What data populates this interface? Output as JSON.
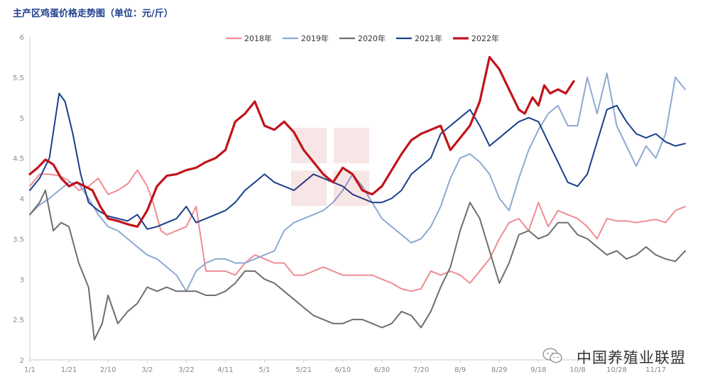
{
  "title": "主产区鸡蛋价格走势图（单位：元/斤）",
  "watermark": "中国养殖业联盟",
  "colors": {
    "2018": "#f08c94",
    "2019": "#8ea9d4",
    "2020": "#6e6e6e",
    "2021": "#1a3f8a",
    "2022": "#c0141c",
    "axis": "#cccccc",
    "tick": "#888888"
  },
  "chart_data": {
    "type": "line",
    "title": "主产区鸡蛋价格走势图（单位：元/斤）",
    "ylim": [
      2,
      6
    ],
    "yticks": [
      "2",
      "2.5",
      "3",
      "3.5",
      "4",
      "4.5",
      "5",
      "5.5",
      "6"
    ],
    "xlabels": [
      "1/1",
      "1/21",
      "2/10",
      "3/2",
      "3/22",
      "4/11",
      "5/1",
      "5/21",
      "6/10",
      "6/30",
      "7/20",
      "8/9",
      "8/29",
      "9/18",
      "10/8",
      "10/28",
      "11/17"
    ],
    "xlim": [
      0,
      335
    ],
    "legend_position": "top-center",
    "grid": false,
    "series": [
      {
        "name": "2018年",
        "x": [
          0,
          5,
          10,
          15,
          20,
          25,
          30,
          35,
          40,
          45,
          50,
          55,
          60,
          63,
          67,
          70,
          75,
          80,
          85,
          90,
          95,
          100,
          105,
          110,
          115,
          120,
          125,
          130,
          135,
          140,
          145,
          150,
          155,
          160,
          165,
          170,
          175,
          180,
          185,
          190,
          195,
          200,
          205,
          210,
          215,
          220,
          225,
          230,
          235,
          240,
          245,
          250,
          255,
          260,
          265,
          270,
          275,
          280,
          285,
          290,
          295,
          300,
          305,
          310,
          315,
          320,
          325,
          330,
          335
        ],
        "y": [
          4.15,
          4.3,
          4.3,
          4.28,
          4.22,
          4.1,
          4.15,
          4.25,
          4.05,
          4.1,
          4.18,
          4.35,
          4.15,
          3.95,
          3.6,
          3.55,
          3.6,
          3.65,
          3.9,
          3.1,
          3.1,
          3.1,
          3.05,
          3.2,
          3.3,
          3.25,
          3.2,
          3.2,
          3.05,
          3.05,
          3.1,
          3.15,
          3.1,
          3.05,
          3.05,
          3.05,
          3.05,
          3.0,
          2.95,
          2.88,
          2.85,
          2.88,
          3.1,
          3.05,
          3.1,
          3.05,
          2.95,
          3.1,
          3.25,
          3.5,
          3.7,
          3.75,
          3.6,
          3.95,
          3.65,
          3.85,
          3.8,
          3.75,
          3.65,
          3.5,
          3.75,
          3.72,
          3.72,
          3.7,
          3.72,
          3.74,
          3.7,
          3.85,
          3.9
        ]
      },
      {
        "name": "2019年",
        "x": [
          0,
          5,
          10,
          15,
          20,
          25,
          30,
          35,
          40,
          45,
          50,
          55,
          60,
          65,
          70,
          75,
          80,
          85,
          90,
          95,
          100,
          105,
          110,
          115,
          120,
          125,
          130,
          135,
          140,
          145,
          150,
          155,
          160,
          165,
          170,
          175,
          180,
          185,
          190,
          195,
          200,
          205,
          210,
          215,
          220,
          225,
          230,
          235,
          240,
          245,
          250,
          255,
          260,
          265,
          270,
          275,
          280,
          285,
          290,
          295,
          300,
          305,
          310,
          315,
          320,
          325,
          330,
          335
        ],
        "y": [
          3.8,
          3.92,
          4.0,
          4.1,
          4.2,
          4.18,
          4.0,
          3.8,
          3.65,
          3.6,
          3.5,
          3.4,
          3.3,
          3.25,
          3.15,
          3.05,
          2.85,
          3.1,
          3.2,
          3.25,
          3.25,
          3.2,
          3.2,
          3.25,
          3.3,
          3.35,
          3.6,
          3.7,
          3.75,
          3.8,
          3.85,
          3.95,
          4.1,
          4.3,
          4.15,
          3.95,
          3.75,
          3.65,
          3.55,
          3.45,
          3.5,
          3.65,
          3.9,
          4.25,
          4.5,
          4.55,
          4.45,
          4.3,
          4.0,
          3.85,
          4.25,
          4.6,
          4.85,
          5.05,
          5.15,
          4.9,
          4.9,
          5.5,
          5.05,
          5.55,
          4.9,
          4.65,
          4.4,
          4.65,
          4.5,
          4.8,
          5.5,
          5.35
        ]
      },
      {
        "name": "2020年",
        "x": [
          0,
          5,
          8,
          12,
          16,
          20,
          25,
          30,
          33,
          37,
          40,
          45,
          50,
          55,
          60,
          65,
          70,
          75,
          80,
          85,
          90,
          95,
          100,
          105,
          110,
          115,
          120,
          125,
          130,
          135,
          140,
          145,
          150,
          155,
          160,
          165,
          170,
          175,
          180,
          185,
          190,
          195,
          200,
          205,
          210,
          215,
          220,
          225,
          230,
          235,
          240,
          245,
          250,
          255,
          260,
          265,
          270,
          275,
          280,
          285,
          290,
          295,
          300,
          305,
          310,
          315,
          320,
          325,
          330,
          335
        ],
        "y": [
          3.8,
          3.95,
          4.1,
          3.6,
          3.7,
          3.65,
          3.2,
          2.9,
          2.25,
          2.45,
          2.8,
          2.45,
          2.6,
          2.7,
          2.9,
          2.85,
          2.9,
          2.85,
          2.85,
          2.85,
          2.8,
          2.8,
          2.85,
          2.95,
          3.1,
          3.1,
          3.0,
          2.95,
          2.85,
          2.75,
          2.65,
          2.55,
          2.5,
          2.45,
          2.45,
          2.5,
          2.5,
          2.45,
          2.4,
          2.45,
          2.6,
          2.55,
          2.4,
          2.6,
          2.9,
          3.15,
          3.6,
          3.95,
          3.75,
          3.35,
          2.95,
          3.2,
          3.55,
          3.6,
          3.5,
          3.55,
          3.7,
          3.7,
          3.55,
          3.5,
          3.4,
          3.3,
          3.35,
          3.25,
          3.3,
          3.4,
          3.3,
          3.25,
          3.22,
          3.35
        ]
      },
      {
        "name": "2021年",
        "x": [
          0,
          5,
          10,
          15,
          18,
          22,
          26,
          30,
          35,
          40,
          45,
          50,
          55,
          60,
          65,
          70,
          75,
          80,
          85,
          90,
          95,
          100,
          105,
          110,
          115,
          120,
          125,
          130,
          135,
          140,
          145,
          150,
          155,
          160,
          165,
          170,
          175,
          180,
          185,
          190,
          195,
          200,
          205,
          210,
          215,
          220,
          225,
          230,
          235,
          240,
          245,
          250,
          255,
          260,
          265,
          270,
          275,
          280,
          285,
          290,
          295,
          300,
          305,
          310,
          315,
          320,
          325,
          330,
          335
        ],
        "y": [
          4.1,
          4.25,
          4.5,
          5.3,
          5.2,
          4.8,
          4.3,
          3.95,
          3.85,
          3.78,
          3.75,
          3.72,
          3.8,
          3.62,
          3.65,
          3.7,
          3.75,
          3.9,
          3.7,
          3.75,
          3.8,
          3.85,
          3.95,
          4.1,
          4.2,
          4.3,
          4.2,
          4.15,
          4.1,
          4.2,
          4.3,
          4.25,
          4.2,
          4.15,
          4.05,
          4.0,
          3.95,
          3.95,
          4.0,
          4.1,
          4.3,
          4.4,
          4.5,
          4.8,
          4.9,
          5.0,
          5.1,
          4.9,
          4.65,
          4.75,
          4.85,
          4.95,
          5.0,
          4.95,
          4.7,
          4.45,
          4.2,
          4.15,
          4.3,
          4.7,
          5.1,
          5.15,
          4.95,
          4.8,
          4.75,
          4.8,
          4.7,
          4.65,
          4.68
        ]
      },
      {
        "name": "2022年",
        "x": [
          0,
          4,
          8,
          12,
          16,
          20,
          24,
          28,
          32,
          36,
          40,
          45,
          50,
          55,
          60,
          65,
          70,
          75,
          80,
          85,
          90,
          95,
          100,
          105,
          110,
          115,
          120,
          125,
          130,
          135,
          140,
          145,
          150,
          155,
          160,
          165,
          170,
          175,
          180,
          185,
          190,
          195,
          200,
          205,
          210,
          215,
          220,
          225,
          230,
          235,
          240,
          245,
          250,
          253,
          257,
          260,
          263,
          266,
          270,
          274,
          278
        ],
        "y": [
          4.3,
          4.38,
          4.48,
          4.42,
          4.25,
          4.15,
          4.2,
          4.15,
          4.1,
          3.9,
          3.75,
          3.72,
          3.68,
          3.65,
          3.85,
          4.15,
          4.28,
          4.3,
          4.35,
          4.38,
          4.45,
          4.5,
          4.6,
          4.95,
          5.05,
          5.2,
          4.9,
          4.85,
          4.95,
          4.82,
          4.6,
          4.45,
          4.3,
          4.2,
          4.38,
          4.3,
          4.1,
          4.05,
          4.15,
          4.35,
          4.55,
          4.72,
          4.8,
          4.85,
          4.9,
          4.6,
          4.75,
          4.9,
          5.2,
          5.75,
          5.6,
          5.35,
          5.1,
          5.05,
          5.25,
          5.15,
          5.4,
          5.3,
          5.35,
          5.3,
          5.45
        ]
      }
    ]
  }
}
